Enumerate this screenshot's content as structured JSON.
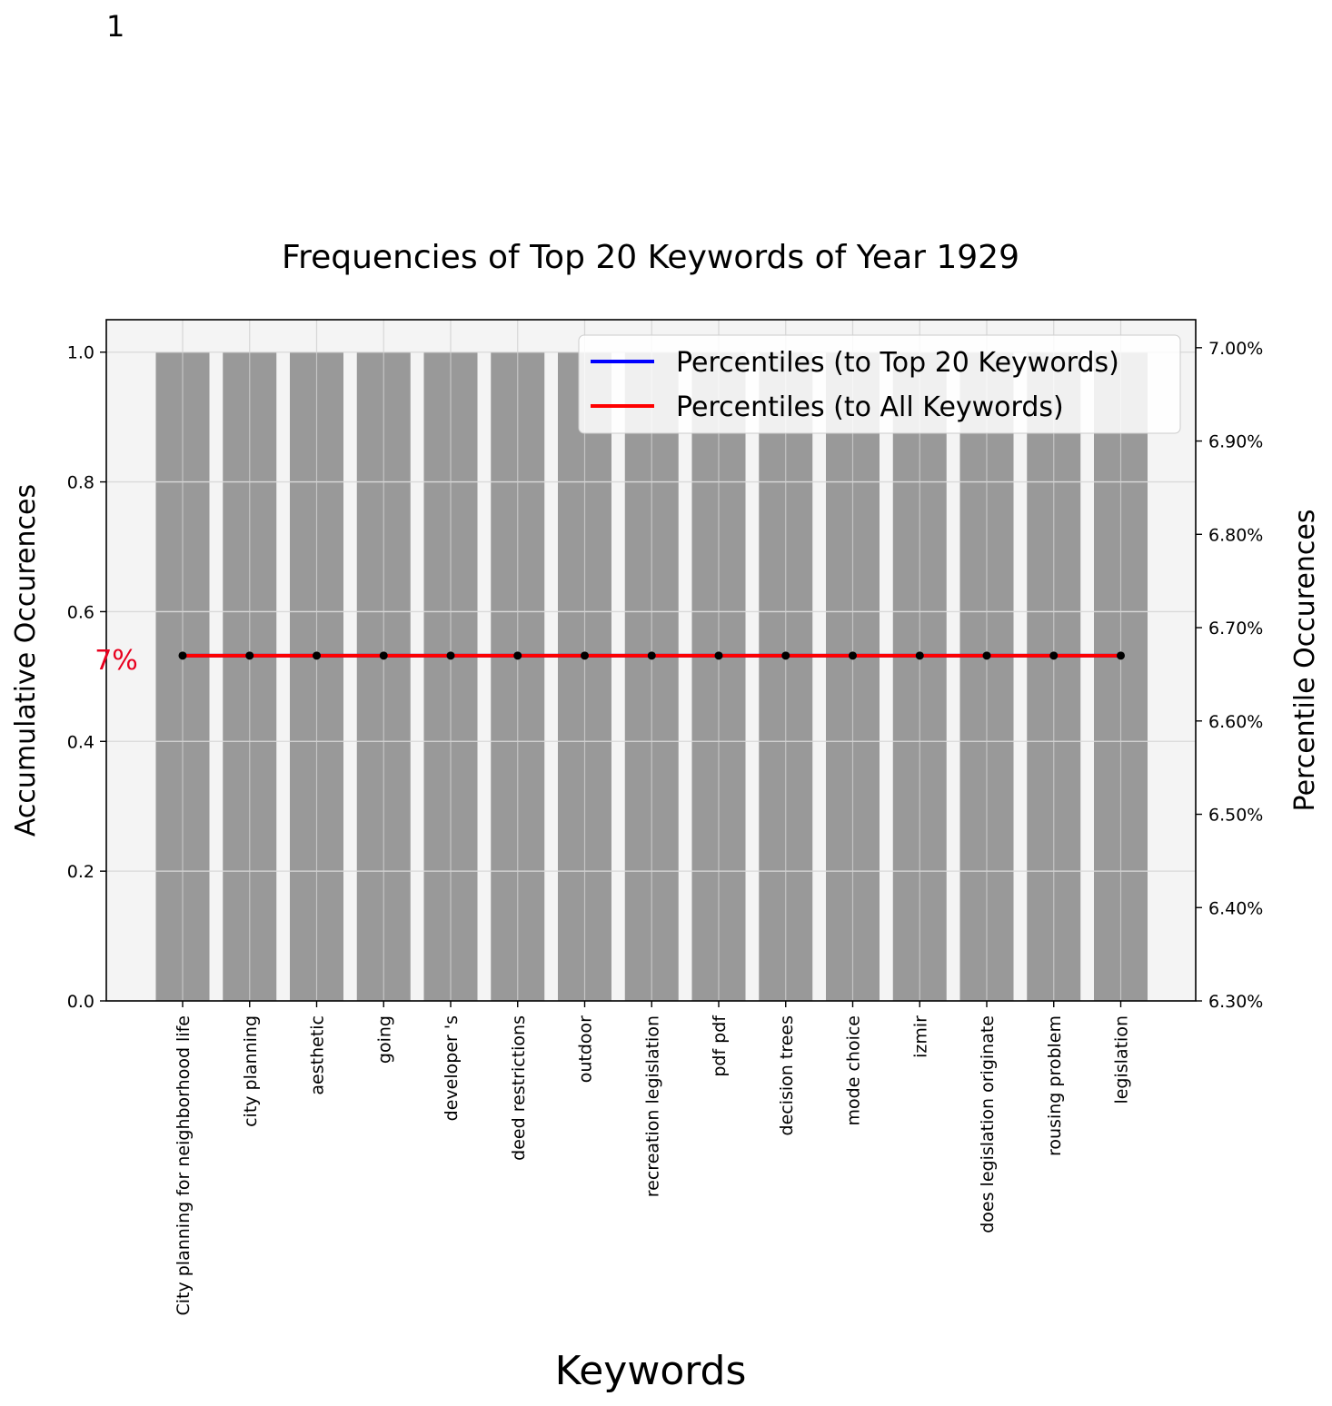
{
  "corner_label": "1",
  "chart_data": {
    "type": "bar",
    "title": "Frequencies of Top 20 Keywords of Year 1929",
    "xlabel": "Keywords",
    "ylabel": "Accumulative Occurences",
    "y2label": "Percentile Occurences",
    "categories": [
      "City planning for neighborhood life",
      "city planning",
      "aesthetic",
      "going",
      "developer 's",
      "deed restrictions",
      "outdoor",
      "recreation legislation",
      "pdf pdf",
      "decision trees",
      "mode choice",
      "izmir",
      "does legislation originate",
      "rousing problem",
      "legislation"
    ],
    "values": [
      1,
      1,
      1,
      1,
      1,
      1,
      1,
      1,
      1,
      1,
      1,
      1,
      1,
      1,
      1
    ],
    "ylim": [
      0,
      1.05
    ],
    "yticks": [
      0.0,
      0.2,
      0.4,
      0.6,
      0.8,
      1.0
    ],
    "ytick_labels": [
      "0.0",
      "0.2",
      "0.4",
      "0.6",
      "0.8",
      "1.0"
    ],
    "y2lim": [
      6.3,
      7.03
    ],
    "y2ticks": [
      6.3,
      6.4,
      6.5,
      6.6,
      6.7,
      6.8,
      6.9,
      7.0
    ],
    "y2tick_labels": [
      "6.30%",
      "6.40%",
      "6.50%",
      "6.60%",
      "6.70%",
      "6.80%",
      "6.90%",
      "7.00%"
    ],
    "series": [
      {
        "name": "Percentiles (to Top 20 Keywords)",
        "color": "#0000ff",
        "axis": "right",
        "values": [
          6.67,
          6.67,
          6.67,
          6.67,
          6.67,
          6.67,
          6.67,
          6.67,
          6.67,
          6.67,
          6.67,
          6.67,
          6.67,
          6.67,
          6.67
        ]
      },
      {
        "name": "Percentiles (to All Keywords)",
        "color": "#ff0000",
        "axis": "right",
        "values": [
          6.67,
          6.67,
          6.67,
          6.67,
          6.67,
          6.67,
          6.67,
          6.67,
          6.67,
          6.67,
          6.67,
          6.67,
          6.67,
          6.67,
          6.67
        ]
      }
    ],
    "annotation": {
      "text": "7%",
      "value": 6.67,
      "color": "#e8001e"
    },
    "bar_color": "#999999",
    "plot_background": "#f4f4f4",
    "marker_color": "#000000",
    "grid": true,
    "legend_position": "top-right"
  }
}
